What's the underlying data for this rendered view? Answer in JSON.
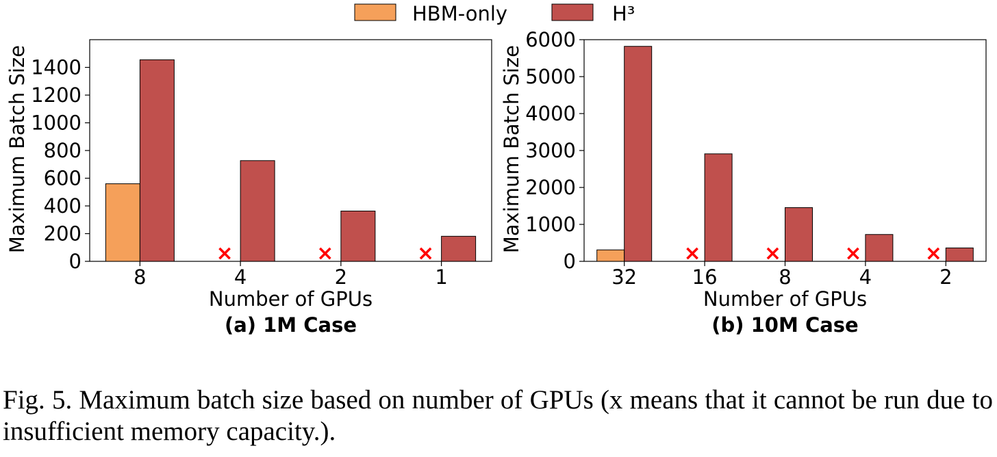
{
  "legend": {
    "position": "top-center",
    "entries": [
      {
        "label": "HBM-only",
        "color": "#f5a05a"
      },
      {
        "label": "H³",
        "color": "#c0504d"
      }
    ]
  },
  "caption": "Fig. 5.  Maximum batch size based on number of GPUs (x means that it cannot be run due to insufficient memory capacity.).",
  "chart_data": [
    {
      "type": "bar",
      "subtitle": "(a) 1M Case",
      "xlabel": "Number of GPUs",
      "ylabel": "Maximum Batch Size",
      "ylim": [
        0,
        1600
      ],
      "yticks": [
        0,
        200,
        400,
        600,
        800,
        1000,
        1200,
        1400
      ],
      "categories": [
        "8",
        "4",
        "2",
        "1"
      ],
      "series": [
        {
          "name": "HBM-only",
          "color": "#f5a05a",
          "values": [
            560,
            null,
            null,
            null
          ]
        },
        {
          "name": "H³",
          "color": "#c0504d",
          "values": [
            1455,
            727,
            363,
            181
          ]
        }
      ],
      "not_runnable_marker": "×",
      "marker_color": "#ff0000",
      "grid": false
    },
    {
      "type": "bar",
      "subtitle": "(b) 10M Case",
      "xlabel": "Number of GPUs",
      "ylabel": "Maximum Batch Size",
      "ylim": [
        0,
        6000
      ],
      "yticks": [
        0,
        1000,
        2000,
        3000,
        4000,
        5000,
        6000
      ],
      "categories": [
        "32",
        "16",
        "8",
        "4",
        "2"
      ],
      "series": [
        {
          "name": "HBM-only",
          "color": "#f5a05a",
          "values": [
            310,
            null,
            null,
            null,
            null
          ]
        },
        {
          "name": "H³",
          "color": "#c0504d",
          "values": [
            5820,
            2910,
            1455,
            727,
            363
          ]
        }
      ],
      "not_runnable_marker": "×",
      "marker_color": "#ff0000",
      "grid": false
    }
  ]
}
